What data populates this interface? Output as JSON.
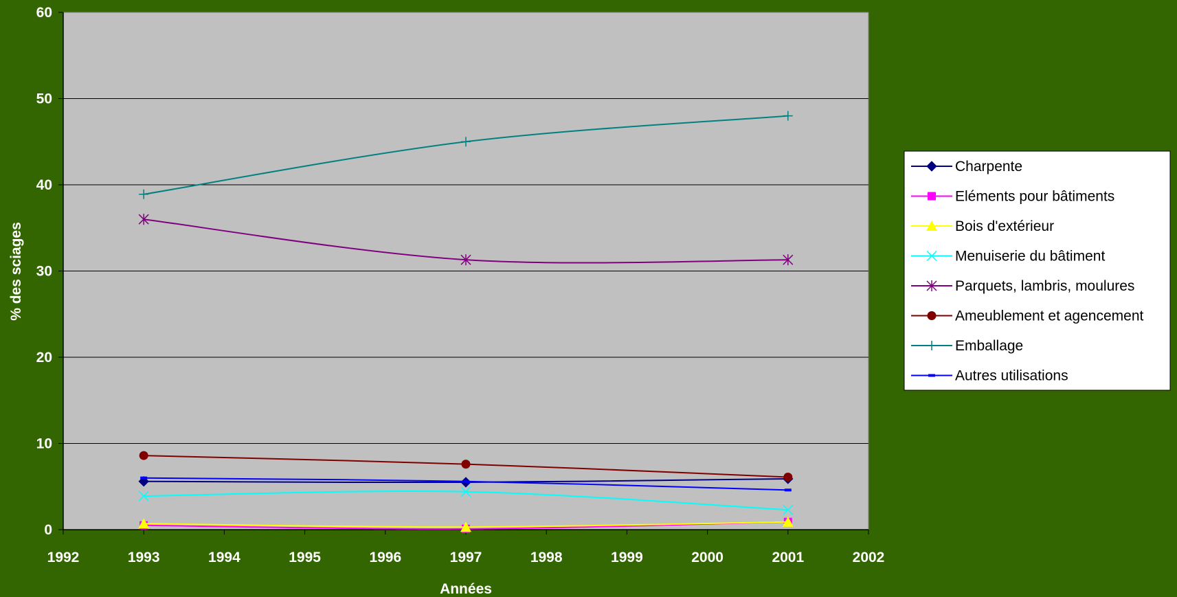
{
  "chart_data": {
    "type": "line",
    "title": "",
    "xlabel": "Années",
    "ylabel": "% des sciages",
    "xlim": [
      1992,
      2002
    ],
    "ylim": [
      0,
      60
    ],
    "x_ticks": [
      "1992",
      "1993",
      "1994",
      "1995",
      "1996",
      "1997",
      "1998",
      "1999",
      "2000",
      "2001",
      "2002"
    ],
    "y_ticks": [
      "0",
      "10",
      "20",
      "30",
      "40",
      "50",
      "60"
    ],
    "grid": true,
    "legend_position": "right",
    "plot_background": "#c0c0c0",
    "page_background": "#336600",
    "x": [
      1993,
      1997,
      2001
    ],
    "series": [
      {
        "name": "Charpente",
        "values": [
          5.6,
          5.5,
          5.9
        ],
        "color": "#000080",
        "marker": "diamond"
      },
      {
        "name": "Eléments pour bâtiments",
        "values": [
          0.5,
          0.1,
          0.9
        ],
        "color": "#ff00ff",
        "marker": "square"
      },
      {
        "name": "Bois d'extérieur",
        "values": [
          0.7,
          0.3,
          0.9
        ],
        "color": "#ffff00",
        "marker": "triangle"
      },
      {
        "name": "Menuiserie du bâtiment",
        "values": [
          3.9,
          4.4,
          2.3
        ],
        "color": "#00ffff",
        "marker": "x"
      },
      {
        "name": "Parquets, lambris, moulures",
        "values": [
          36,
          31.3,
          31.3
        ],
        "color": "#800080",
        "marker": "star"
      },
      {
        "name": "Ameublement et agencement",
        "values": [
          8.6,
          7.6,
          6.1
        ],
        "color": "#800000",
        "marker": "circle"
      },
      {
        "name": "Emballage",
        "values": [
          38.9,
          45,
          48
        ],
        "color": "#008080",
        "marker": "plus"
      },
      {
        "name": "Autres utilisations",
        "values": [
          6.0,
          5.6,
          4.6
        ],
        "color": "#0000ff",
        "marker": "dash"
      }
    ]
  }
}
